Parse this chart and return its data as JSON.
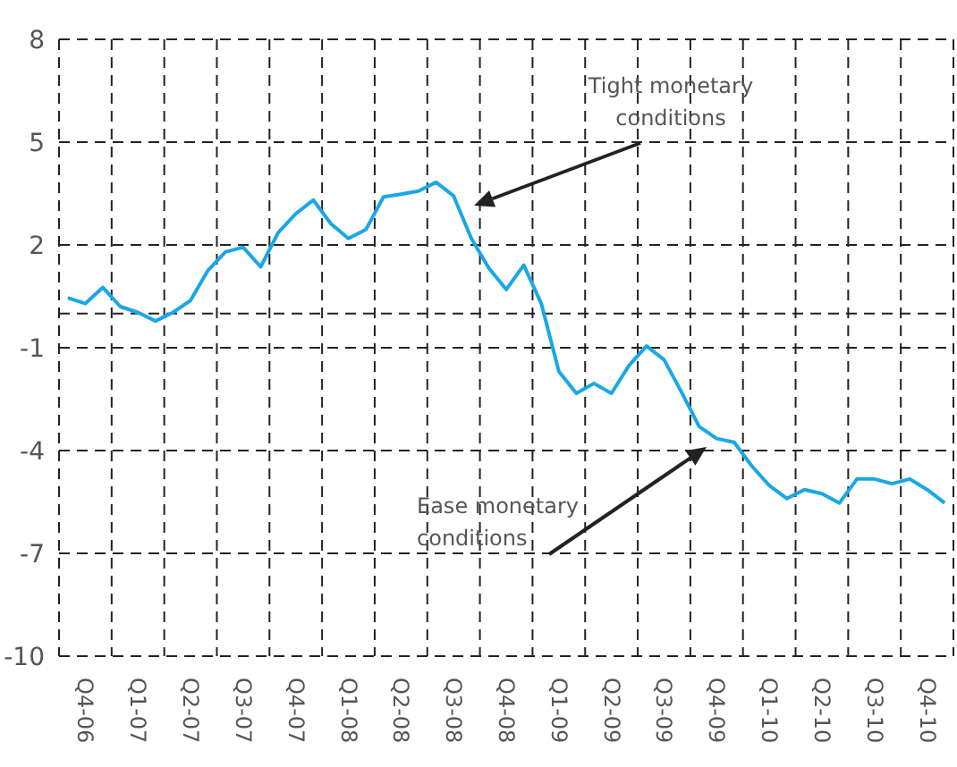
{
  "chart_data": {
    "type": "line",
    "categories": [
      null,
      "Q4-06",
      null,
      null,
      "Q1-07",
      null,
      null,
      "Q2-07",
      null,
      null,
      "Q3-07",
      null,
      null,
      "Q4-07",
      null,
      null,
      "Q1-08",
      null,
      null,
      "Q2-08",
      null,
      null,
      "Q3-08",
      null,
      null,
      "Q4-08",
      null,
      null,
      "Q1-09",
      null,
      null,
      "Q2-09",
      null,
      null,
      "Q3-09",
      null,
      null,
      "Q4-09",
      null,
      null,
      "Q1-10",
      null,
      null,
      "Q2-10",
      null,
      null,
      "Q3-10",
      null,
      null,
      "Q4-10",
      null
    ],
    "series": [
      {
        "color": "#1aa7e6",
        "values": [
          0.46,
          0.29,
          0.76,
          0.2,
          0.03,
          -0.22,
          0.03,
          0.38,
          1.26,
          1.8,
          1.93,
          1.36,
          2.36,
          2.91,
          3.31,
          2.62,
          2.19,
          2.45,
          3.4,
          3.48,
          3.57,
          3.83,
          3.43,
          2.2,
          1.33,
          0.7,
          1.41,
          0.29,
          -1.69,
          -2.33,
          -2.04,
          -2.33,
          -1.52,
          -0.95,
          -1.35,
          -2.3,
          -3.3,
          -3.65,
          -3.76,
          -4.45,
          -5.02,
          -5.4,
          -5.14,
          -5.26,
          -5.53,
          -4.83,
          -4.83,
          -4.97,
          -4.83,
          -5.14,
          -5.53
        ]
      }
    ],
    "ylim": [
      -10,
      8
    ],
    "yticks": [
      -10,
      -7,
      -4,
      -1,
      {
        "value": 0,
        "label": null
      },
      2,
      5,
      8
    ],
    "grid": true,
    "marker": "none",
    "line_style": "solid",
    "annotations": [
      "Tight monetary conditions",
      "Ease monetary conditions"
    ]
  }
}
